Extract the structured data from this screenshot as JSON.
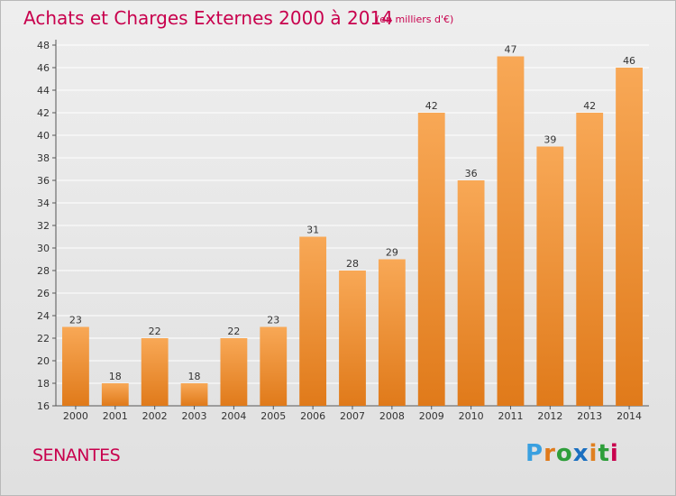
{
  "header": {
    "title": "Achats et Charges Externes 2000 à 2014",
    "unit": "(en milliers d'€)"
  },
  "footer": {
    "commune": "SENANTES",
    "logo": {
      "text": "Proxiti",
      "letter_colors": [
        "#3aa0e0",
        "#e07a1a",
        "#2e9e3a",
        "#1a6fc0",
        "#e08020",
        "#2e9e3a",
        "#c8004d"
      ]
    }
  },
  "colors": {
    "bar_top": "#f8a856",
    "bar_bottom": "#e07a1a",
    "accent": "#c8004d",
    "grid": "#ffffff",
    "axis": "#555555"
  },
  "chart_data": {
    "type": "bar",
    "title": "Achats et Charges Externes 2000 à 2014",
    "subtitle": "(en milliers d'€)",
    "xlabel": "",
    "ylabel": "",
    "categories": [
      "2000",
      "2001",
      "2002",
      "2003",
      "2004",
      "2005",
      "2006",
      "2007",
      "2008",
      "2009",
      "2010",
      "2011",
      "2012",
      "2013",
      "2014"
    ],
    "values": [
      23,
      18,
      22,
      18,
      22,
      23,
      31,
      28,
      29,
      42,
      36,
      47,
      39,
      42,
      46
    ],
    "ylim": [
      16,
      48
    ],
    "yticks": [
      16,
      18,
      20,
      22,
      24,
      26,
      28,
      30,
      32,
      34,
      36,
      38,
      40,
      42,
      44,
      46,
      48
    ],
    "grid": true,
    "data_labels": true
  }
}
